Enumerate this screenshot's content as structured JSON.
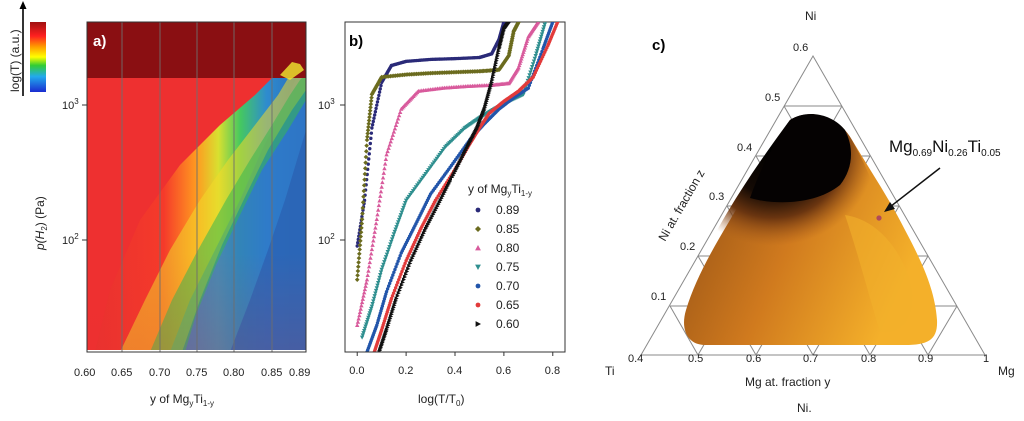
{
  "panel_a": {
    "label": "a)",
    "ylabel": "p(H",
    "ylabel_sub": "2",
    "ylabel_end": ") (Pa)",
    "cbar_label": "log(T) (a.u.)",
    "y_tick_hi": "10",
    "y_tick_hi_exp": "3",
    "y_tick_lo": "10",
    "y_tick_lo_exp": "2",
    "xlabel_main": "y of Mg",
    "xlabel_sub_y": "y",
    "xlabel_ti": "Ti",
    "xlabel_sub_1y": "1-y"
  },
  "panel_b": {
    "label": "b)",
    "xlabel": "log(T/T",
    "xlabel_sub": "0",
    "xlabel_end": ")",
    "y_tick_hi": "10",
    "y_tick_hi_exp": "3",
    "y_tick_lo": "10",
    "y_tick_lo_exp": "2",
    "legend_title_main": "y of Mg",
    "legend_title_sub_y": "y",
    "legend_title_ti": "Ti",
    "legend_title_sub": "1-y"
  },
  "panel_c": {
    "label": "c)",
    "vertex_top": "Ni",
    "vertex_left": "Ti",
    "vertex_right": "Mg",
    "left_axis_label": "Ni at. fraction z",
    "bottom_axis_label": "Mg at. fraction y",
    "bottom_caption": "Ni.",
    "bottom_ticks": [
      "0.4",
      "0.5",
      "0.6",
      "0.7",
      "0.8",
      "0.9",
      "1"
    ],
    "left_ticks": [
      "0.1",
      "0.2",
      "0.3",
      "0.4",
      "0.5",
      "0.6"
    ],
    "annotation": {
      "e1": "Mg",
      "s1": "0.69",
      "e2": "Ni",
      "s2": "0.26",
      "e3": "Ti",
      "s3": "0.05"
    }
  },
  "chart_data": [
    {
      "type": "heatmap",
      "panel": "a",
      "title": "",
      "xlabel": "y of MgyTi1-y",
      "ylabel": "p(H2) (Pa)",
      "x_ticks": [
        "0.60",
        "0.65",
        "0.70",
        "0.75",
        "0.80",
        "0.85",
        "0.89"
      ],
      "x_range": [
        0.6,
        0.89
      ],
      "y_scale": "log",
      "y_range": [
        20,
        3000
      ],
      "colorbar_label": "log(T) (a.u.)",
      "plateau_boundary": {
        "y": [
          0.6,
          0.65,
          0.7,
          0.75,
          0.8,
          0.85,
          0.87,
          0.89
        ],
        "p": [
          20,
          35,
          60,
          120,
          250,
          700,
          1800,
          3000
        ]
      },
      "vertical_line_compositions": [
        0.65,
        0.7,
        0.75,
        0.8,
        0.85
      ]
    },
    {
      "type": "scatter",
      "panel": "b",
      "xlabel": "log(T/T0)",
      "ylabel": "p(H2) (Pa)",
      "x_ticks": [
        "0.0",
        "0.2",
        "0.4",
        "0.6",
        "0.8"
      ],
      "x_range": [
        -0.05,
        0.85
      ],
      "y_scale": "log",
      "y_range": [
        20,
        3000
      ],
      "legend_title": "y of MgyTi1-y",
      "series": [
        {
          "name": "0.89",
          "color": "#2a2a78",
          "marker": "circle",
          "x": [
            0.0,
            0.03,
            0.06,
            0.1,
            0.14,
            0.2,
            0.3,
            0.4,
            0.5,
            0.55,
            0.58,
            0.6,
            0.62
          ],
          "y": [
            100,
            200,
            600,
            1200,
            1550,
            1650,
            1700,
            1720,
            1750,
            1850,
            2300,
            3000,
            3000
          ]
        },
        {
          "name": "0.85",
          "color": "#6b6b1e",
          "marker": "diamond",
          "x": [
            0.0,
            0.02,
            0.04,
            0.06,
            0.1,
            0.2,
            0.3,
            0.4,
            0.5,
            0.58,
            0.62,
            0.64,
            0.66
          ],
          "y": [
            60,
            150,
            500,
            1000,
            1300,
            1350,
            1380,
            1400,
            1420,
            1450,
            1800,
            2600,
            3000
          ]
        },
        {
          "name": "0.80",
          "color": "#d85a9c",
          "marker": "triangle",
          "x": [
            0.0,
            0.04,
            0.08,
            0.12,
            0.18,
            0.25,
            0.35,
            0.45,
            0.55,
            0.62,
            0.66,
            0.7,
            0.74
          ],
          "y": [
            30,
            60,
            150,
            400,
            800,
            1050,
            1100,
            1130,
            1150,
            1180,
            1500,
            2400,
            3000
          ]
        },
        {
          "name": "0.75",
          "color": "#2f8f8f",
          "marker": "triangle-down",
          "x": [
            0.02,
            0.06,
            0.1,
            0.15,
            0.2,
            0.28,
            0.36,
            0.44,
            0.5,
            0.56,
            0.62,
            0.68,
            0.73,
            0.77
          ],
          "y": [
            25,
            40,
            70,
            120,
            200,
            300,
            450,
            600,
            700,
            800,
            900,
            1000,
            1800,
            3000
          ]
        },
        {
          "name": "0.70",
          "color": "#2255aa",
          "marker": "circle",
          "x": [
            0.04,
            0.08,
            0.12,
            0.18,
            0.24,
            0.3,
            0.38,
            0.46,
            0.52,
            0.58,
            0.64,
            0.7,
            0.76,
            0.8
          ],
          "y": [
            20,
            30,
            50,
            90,
            140,
            220,
            330,
            500,
            640,
            800,
            950,
            1100,
            2000,
            3000
          ]
        },
        {
          "name": "0.65",
          "color": "#e23b3b",
          "marker": "circle",
          "x": [
            0.07,
            0.1,
            0.14,
            0.2,
            0.26,
            0.32,
            0.4,
            0.46,
            0.5,
            0.54,
            0.6,
            0.66,
            0.72,
            0.78,
            0.82
          ],
          "y": [
            20,
            28,
            45,
            80,
            130,
            200,
            320,
            470,
            600,
            750,
            900,
            1050,
            1300,
            2100,
            3000
          ]
        },
        {
          "name": "0.60",
          "color": "#111111",
          "marker": "triangle-right",
          "x": [
            0.09,
            0.12,
            0.16,
            0.22,
            0.28,
            0.34,
            0.4,
            0.45,
            0.49,
            0.52,
            0.55,
            0.58,
            0.6,
            0.62
          ],
          "y": [
            20,
            28,
            45,
            80,
            130,
            200,
            310,
            450,
            600,
            800,
            1200,
            2000,
            2700,
            3000
          ]
        }
      ]
    },
    {
      "type": "ternary",
      "panel": "c",
      "vertices": [
        "Ni",
        "Ti",
        "Mg"
      ],
      "axis_ranges": {
        "Mg": [
          0.4,
          1.0
        ],
        "Ni": [
          0.0,
          0.6
        ]
      },
      "highlight_point": {
        "Mg": 0.69,
        "Ni": 0.26,
        "Ti": 0.05
      }
    }
  ]
}
